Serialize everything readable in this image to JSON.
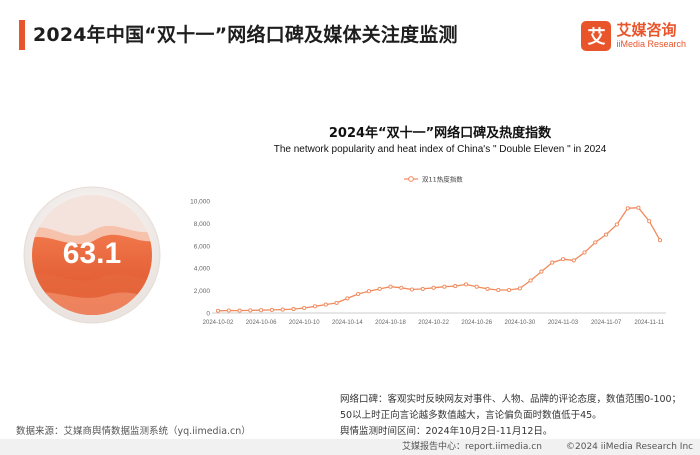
{
  "header": {
    "title": "2024年中国“双十一”网络口碑及媒体关注度监测"
  },
  "brand": {
    "mark": "艾",
    "name": "艾媒咨询",
    "name_en": "iiMedia Research",
    "color": "#e8552b"
  },
  "gauge": {
    "value": "63.1",
    "level": 63.1
  },
  "chart_data": {
    "type": "line",
    "title": "2024年“双十一”网络口碑及热度指数",
    "subtitle": "The network popularity and heat index of China's \" Double Eleven \" in 2024",
    "legend": "双11热度指数",
    "legend_position": "top-center",
    "grid": false,
    "ylim": [
      0,
      10000
    ],
    "yticks": [
      "0",
      "2,000",
      "4,000",
      "6,000",
      "8,000",
      "10,000"
    ],
    "xtick_labels": [
      "2024-10-02",
      "2024-10-06",
      "2024-10-10",
      "2024-10-14",
      "2024-10-18",
      "2024-10-22",
      "2024-10-26",
      "2024-10-30",
      "2024-11-03",
      "2024-11-07",
      "2024-11-11"
    ],
    "x": [
      "2024-10-02",
      "2024-10-03",
      "2024-10-04",
      "2024-10-05",
      "2024-10-06",
      "2024-10-07",
      "2024-10-08",
      "2024-10-09",
      "2024-10-10",
      "2024-10-11",
      "2024-10-12",
      "2024-10-13",
      "2024-10-14",
      "2024-10-15",
      "2024-10-16",
      "2024-10-17",
      "2024-10-18",
      "2024-10-19",
      "2024-10-20",
      "2024-10-21",
      "2024-10-22",
      "2024-10-23",
      "2024-10-24",
      "2024-10-25",
      "2024-10-26",
      "2024-10-27",
      "2024-10-28",
      "2024-10-29",
      "2024-10-30",
      "2024-10-31",
      "2024-11-01",
      "2024-11-02",
      "2024-11-03",
      "2024-11-04",
      "2024-11-05",
      "2024-11-06",
      "2024-11-07",
      "2024-11-08",
      "2024-11-09",
      "2024-11-10",
      "2024-11-11",
      "2024-11-12"
    ],
    "values": [
      200,
      220,
      210,
      230,
      250,
      280,
      300,
      350,
      450,
      600,
      750,
      900,
      1300,
      1700,
      1950,
      2150,
      2350,
      2250,
      2100,
      2150,
      2250,
      2350,
      2400,
      2550,
      2350,
      2150,
      2050,
      2050,
      2200,
      2900,
      3700,
      4500,
      4800,
      4700,
      5400,
      6300,
      7000,
      7900,
      9350,
      9400,
      8200,
      6500
    ],
    "series_color": "#f08a5d"
  },
  "note": {
    "line1": "网络口碑：客观实时反映网友对事件、人物、品牌的评论态度，数值范围0-100；",
    "line2": "50以上时正向言论越多数值越大，言论偏负面时数值低于45。",
    "line3": "舆情监测时间区间：2024年10月2日-11月12日。"
  },
  "source": "数据来源：艾媒商舆情数据监测系统（yq.iimedia.cn）",
  "footer": {
    "left": "艾媒报告中心：report.iimedia.cn",
    "right": "©2024  iiMedia Research  Inc"
  }
}
